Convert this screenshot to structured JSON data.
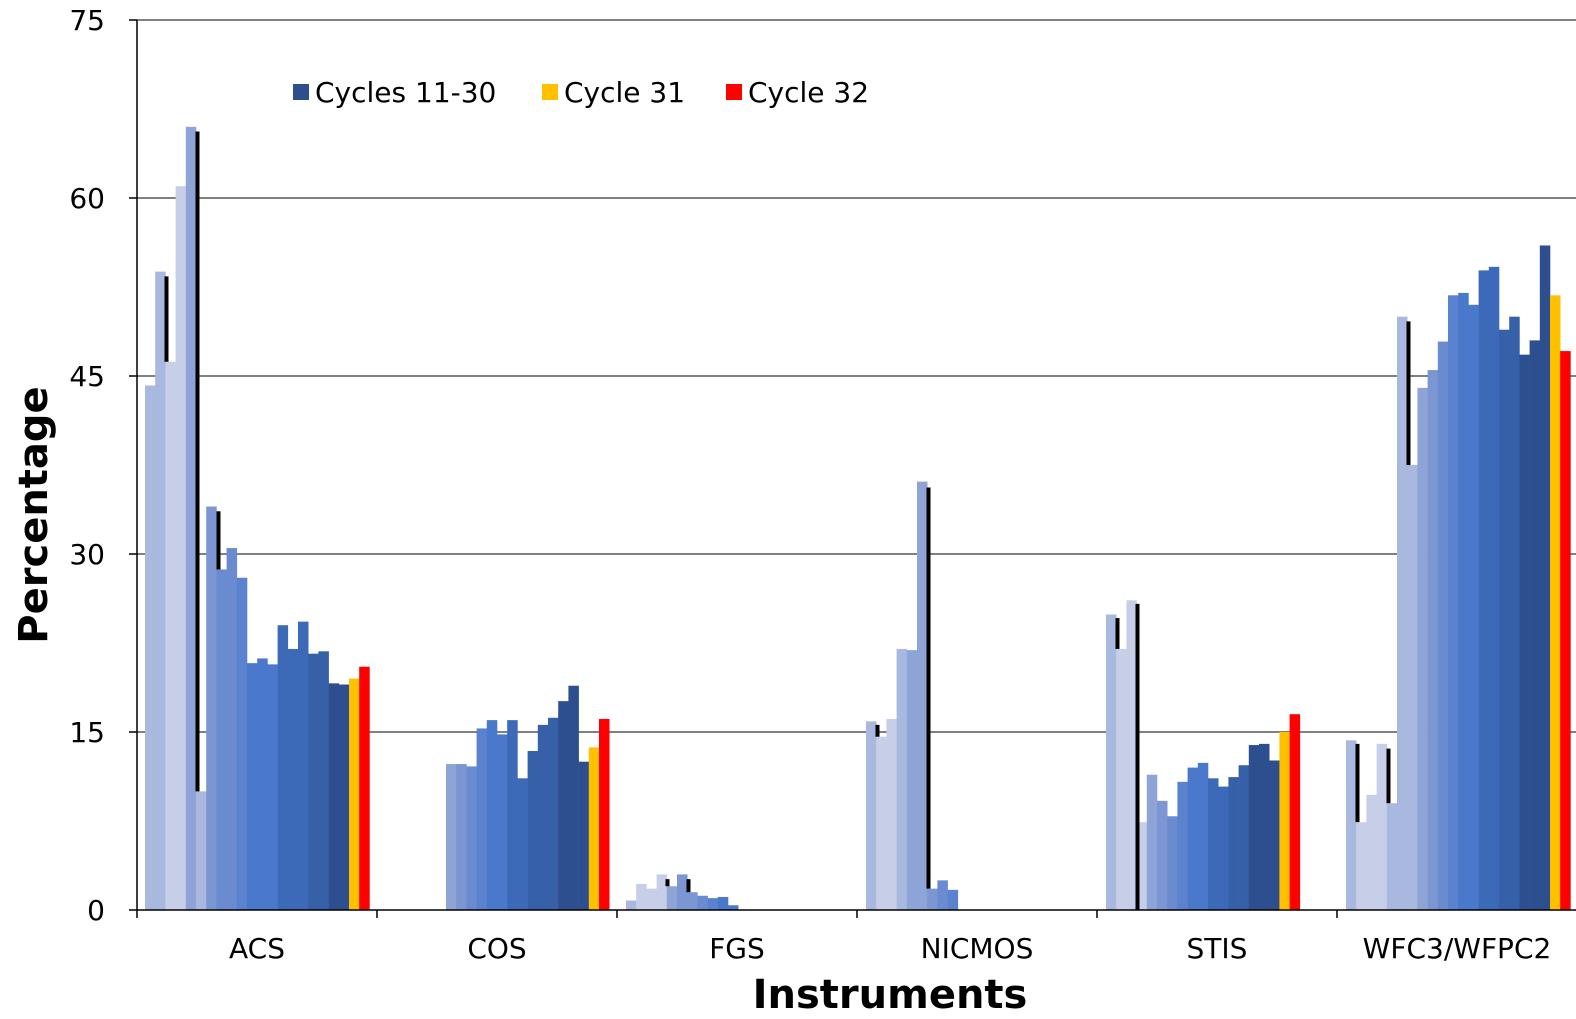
{
  "chart_data": {
    "type": "bar",
    "title": "",
    "xlabel": "Instruments",
    "ylabel": "Percentage",
    "ylim": [
      0,
      75
    ],
    "yticks": [
      "0",
      "15",
      "30",
      "45",
      "60",
      "75"
    ],
    "grid": true,
    "legend_position": "top-left",
    "legend": [
      {
        "name": "Cycles 11-30",
        "color": "#2e4f8f"
      },
      {
        "name": "Cycle 31",
        "color": "#ffc000"
      },
      {
        "name": "Cycle 32",
        "color": "#ff0000"
      }
    ],
    "categories": [
      "ACS",
      "COS",
      "FGS",
      "NICMOS",
      "STIS",
      "WFC3/WFPC2"
    ],
    "groups": [
      {
        "name": "ACS",
        "bars": [
          {
            "c": 1,
            "v": 44.2
          },
          {
            "c": 1,
            "v": 53.8
          },
          {
            "c": 0,
            "v": 46.2
          },
          {
            "c": 0,
            "v": 61.0
          },
          {
            "c": 2,
            "v": 66.0
          },
          {
            "c": 1,
            "v": 10.0
          },
          {
            "c": 3,
            "v": 34.0
          },
          {
            "c": 4,
            "v": 28.7
          },
          {
            "c": 4,
            "v": 30.5
          },
          {
            "c": 5,
            "v": 28.0
          },
          {
            "c": 6,
            "v": 20.8
          },
          {
            "c": 6,
            "v": 21.2
          },
          {
            "c": 6,
            "v": 20.7
          },
          {
            "c": 7,
            "v": 24.0
          },
          {
            "c": 7,
            "v": 22.0
          },
          {
            "c": 7,
            "v": 24.3
          },
          {
            "c": 8,
            "v": 21.6
          },
          {
            "c": 8,
            "v": 21.8
          },
          {
            "c": 9,
            "v": 19.1
          },
          {
            "c": 9,
            "v": 19.0
          },
          {
            "c": "y",
            "v": 19.5
          },
          {
            "c": "r",
            "v": 20.5
          }
        ],
        "bars_start": 145
      },
      {
        "name": "COS",
        "bars": [
          {
            "c": 2,
            "v": 12.3
          },
          {
            "c": 3,
            "v": 12.3
          },
          {
            "c": 4,
            "v": 12.1
          },
          {
            "c": 5,
            "v": 15.3
          },
          {
            "c": 6,
            "v": 16.0
          },
          {
            "c": 6,
            "v": 14.8
          },
          {
            "c": 7,
            "v": 16.0
          },
          {
            "c": 7,
            "v": 11.1
          },
          {
            "c": 8,
            "v": 13.4
          },
          {
            "c": 8,
            "v": 15.6
          },
          {
            "c": 8,
            "v": 16.2
          },
          {
            "c": 9,
            "v": 17.6
          },
          {
            "c": 9,
            "v": 18.9
          },
          {
            "c": 9,
            "v": 12.5
          },
          {
            "c": "y",
            "v": 13.7
          },
          {
            "c": "r",
            "v": 16.1
          }
        ],
        "bars_start": 446
      },
      {
        "name": "FGS",
        "bars": [
          {
            "c": 1,
            "v": 0.8
          },
          {
            "c": 0,
            "v": 2.2
          },
          {
            "c": 0,
            "v": 1.8
          },
          {
            "c": 0,
            "v": 3.0
          },
          {
            "c": 2,
            "v": 2.0
          },
          {
            "c": 3,
            "v": 3.0
          },
          {
            "c": 3,
            "v": 1.5
          },
          {
            "c": 4,
            "v": 1.2
          },
          {
            "c": 5,
            "v": 1.0
          },
          {
            "c": 6,
            "v": 1.1
          },
          {
            "c": 6,
            "v": 0.4
          }
        ],
        "bars_start": 626
      },
      {
        "name": "NICMOS",
        "bars": [
          {
            "c": 1,
            "v": 15.9
          },
          {
            "c": 0,
            "v": 14.6
          },
          {
            "c": 0,
            "v": 16.1
          },
          {
            "c": 1,
            "v": 22.0
          },
          {
            "c": 2,
            "v": 21.9
          },
          {
            "c": 2,
            "v": 36.1
          },
          {
            "c": 3,
            "v": 1.8
          },
          {
            "c": 4,
            "v": 2.5
          },
          {
            "c": 5,
            "v": 1.7
          }
        ],
        "bars_start": 866
      },
      {
        "name": "STIS",
        "bars": [
          {
            "c": 1,
            "v": 24.9
          },
          {
            "c": 0,
            "v": 22.0
          },
          {
            "c": 0,
            "v": 26.1
          },
          {
            "c": 0,
            "v": 7.4
          },
          {
            "c": 2,
            "v": 11.4
          },
          {
            "c": 3,
            "v": 9.2
          },
          {
            "c": 4,
            "v": 7.9
          },
          {
            "c": 5,
            "v": 10.8
          },
          {
            "c": 6,
            "v": 12.0
          },
          {
            "c": 6,
            "v": 12.4
          },
          {
            "c": 7,
            "v": 11.1
          },
          {
            "c": 7,
            "v": 10.4
          },
          {
            "c": 8,
            "v": 11.2
          },
          {
            "c": 8,
            "v": 12.2
          },
          {
            "c": 9,
            "v": 13.9
          },
          {
            "c": 9,
            "v": 14.0
          },
          {
            "c": 9,
            "v": 12.6
          },
          {
            "c": "y",
            "v": 15.0
          },
          {
            "c": "r",
            "v": 16.5
          }
        ],
        "bars_start": 1106
      },
      {
        "name": "WFC3/WFPC2",
        "bars": [
          {
            "c": 1,
            "v": 14.3
          },
          {
            "c": 0,
            "v": 7.4
          },
          {
            "c": 0,
            "v": 9.7
          },
          {
            "c": 0,
            "v": 14.0
          },
          {
            "c": 1,
            "v": 9.0
          },
          {
            "c": 1,
            "v": 50.0
          },
          {
            "c": 1,
            "v": 37.5
          },
          {
            "c": 2,
            "v": 44.0
          },
          {
            "c": 3,
            "v": 45.5
          },
          {
            "c": 4,
            "v": 47.9
          },
          {
            "c": 5,
            "v": 51.8
          },
          {
            "c": 6,
            "v": 52.0
          },
          {
            "c": 6,
            "v": 51.0
          },
          {
            "c": 7,
            "v": 53.9
          },
          {
            "c": 7,
            "v": 54.2
          },
          {
            "c": 8,
            "v": 48.9
          },
          {
            "c": 8,
            "v": 50.0
          },
          {
            "c": 9,
            "v": 46.8
          },
          {
            "c": 9,
            "v": 48.0
          },
          {
            "c": 9,
            "v": 56.0
          },
          {
            "c": "y",
            "v": 51.8
          },
          {
            "c": "r",
            "v": 47.1
          }
        ],
        "bars_start": 1346
      }
    ],
    "error_lines": [
      {
        "group": "ACS",
        "from": 46.2,
        "to": 53.4
      },
      {
        "group": "ACS",
        "from": 10.0,
        "to": 65.6
      },
      {
        "group": "ACS",
        "from": 28.7,
        "to": 33.6
      },
      {
        "group": "FGS",
        "from": 2.0,
        "to": 2.6
      },
      {
        "group": "FGS",
        "from": 1.5,
        "to": 2.6
      },
      {
        "group": "NICMOS",
        "from": 14.6,
        "to": 15.6
      },
      {
        "group": "NICMOS",
        "from": 1.8,
        "to": 35.6
      },
      {
        "group": "STIS",
        "from": 22.0,
        "to": 24.6
      },
      {
        "group": "STIS",
        "from": 0.0,
        "to": 25.8
      },
      {
        "group": "WFC3/WFPC2",
        "from": 7.4,
        "to": 14.0
      },
      {
        "group": "WFC3/WFPC2",
        "from": 9.0,
        "to": 13.6
      },
      {
        "group": "WFC3/WFPC2",
        "from": 37.5,
        "to": 49.6
      }
    ],
    "shade_palette": [
      "#c7cfe8",
      "#a9b8de",
      "#8ea3d6",
      "#7b96d2",
      "#6a8bd0",
      "#5b82cf",
      "#4a78ca",
      "#3d6ab8",
      "#3660a8",
      "#2e4f8f"
    ]
  }
}
